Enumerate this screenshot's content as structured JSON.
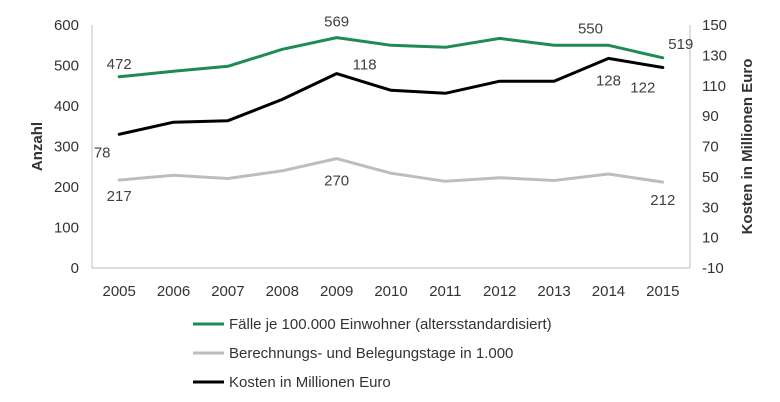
{
  "chart_data": {
    "type": "line",
    "categories": [
      "2005",
      "2006",
      "2007",
      "2008",
      "2009",
      "2010",
      "2011",
      "2012",
      "2013",
      "2014",
      "2015"
    ],
    "ylabel": "Anzahl",
    "y2label": "Kosten in Millionen Euro",
    "ylim": [
      0,
      600
    ],
    "y2lim": [
      -10,
      150
    ],
    "yticks": [
      0,
      100,
      200,
      300,
      400,
      500,
      600
    ],
    "y2ticks": [
      -10,
      10,
      30,
      50,
      70,
      90,
      110,
      130,
      150
    ],
    "grid": false,
    "legend_position": "bottom",
    "series": [
      {
        "name": "Fälle je 100.000 Einwohner (altersstandardisiert)",
        "axis": "left",
        "color": "#1e8c52",
        "values": [
          472,
          486,
          498,
          540,
          569,
          550,
          545,
          567,
          550,
          550,
          519
        ],
        "labels": [
          {
            "index": 0,
            "text": "472"
          },
          {
            "index": 4,
            "text": "569"
          },
          {
            "index": 9,
            "text": "550"
          },
          {
            "index": 10,
            "text": "519"
          }
        ]
      },
      {
        "name": "Berechnungs- und Belegungstage in 1.000",
        "axis": "left",
        "color": "#bdbdbd",
        "values": [
          217,
          229,
          221,
          240,
          270,
          234,
          214,
          223,
          216,
          232,
          212
        ],
        "labels": [
          {
            "index": 0,
            "text": "217"
          },
          {
            "index": 4,
            "text": "270"
          },
          {
            "index": 10,
            "text": "212"
          }
        ]
      },
      {
        "name": "Kosten in Millionen Euro",
        "axis": "right",
        "color": "#000000",
        "values": [
          78,
          86,
          87,
          101,
          118,
          107,
          105,
          113,
          113,
          128,
          122
        ],
        "labels": [
          {
            "index": 0,
            "text": "78"
          },
          {
            "index": 4,
            "text": "118"
          },
          {
            "index": 9,
            "text": "128"
          },
          {
            "index": 10,
            "text": "122"
          }
        ]
      }
    ]
  }
}
